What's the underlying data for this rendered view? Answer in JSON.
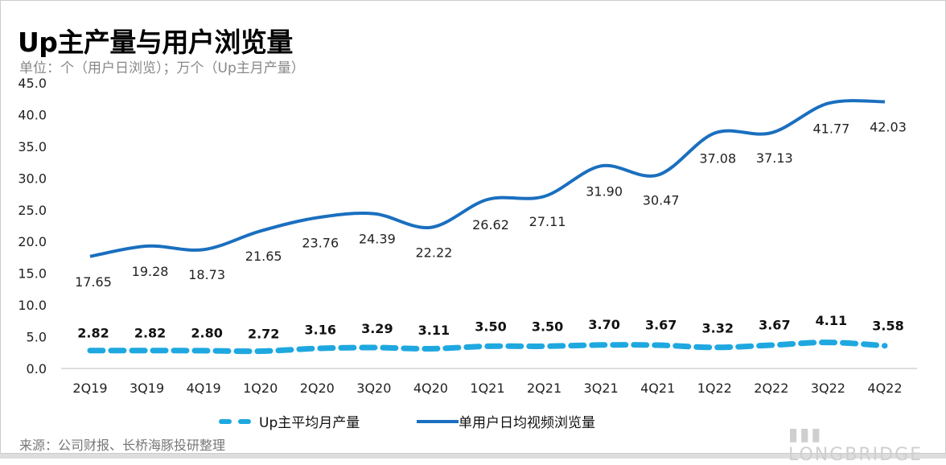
{
  "title": "Up主产量与用户浏览量",
  "unit": "单位：个（用户日浏览）；万个（Up主月产量）",
  "source": "来源：公司财报、长桥海豚投研整理",
  "watermark": "LONGBRIDGE",
  "colors": {
    "dashed": "#1fa8e0",
    "solid": "#1a6fbf"
  },
  "chart_data": {
    "type": "line",
    "title": "Up主产量与用户浏览量",
    "categories": [
      "2Q19",
      "3Q19",
      "4Q19",
      "1Q20",
      "2Q20",
      "3Q20",
      "4Q20",
      "1Q21",
      "2Q21",
      "3Q21",
      "4Q21",
      "1Q22",
      "2Q22",
      "3Q22",
      "4Q22"
    ],
    "y_ticks": [
      "0.0",
      "5.0",
      "10.0",
      "15.0",
      "20.0",
      "25.0",
      "30.0",
      "35.0",
      "40.0",
      "45.0"
    ],
    "ylim": [
      0,
      45
    ],
    "grid": false,
    "legend_position": "bottom",
    "series": [
      {
        "name": "Up主平均月产量",
        "style": "dashed",
        "values": [
          2.82,
          2.82,
          2.8,
          2.72,
          3.16,
          3.29,
          3.11,
          3.5,
          3.5,
          3.7,
          3.67,
          3.32,
          3.67,
          4.11,
          3.58
        ],
        "labels": [
          "2.82",
          "2.82",
          "2.80",
          "2.72",
          "3.16",
          "3.29",
          "3.11",
          "3.50",
          "3.50",
          "3.70",
          "3.67",
          "3.32",
          "3.67",
          "4.11",
          "3.58"
        ]
      },
      {
        "name": "单用户日均视频浏览量",
        "style": "solid",
        "values": [
          17.65,
          19.28,
          18.73,
          21.65,
          23.76,
          24.39,
          22.22,
          26.62,
          27.11,
          31.9,
          30.47,
          37.08,
          37.13,
          41.77,
          42.03
        ],
        "labels": [
          "17.65",
          "19.28",
          "18.73",
          "21.65",
          "23.76",
          "24.39",
          "22.22",
          "26.62",
          "27.11",
          "31.90",
          "30.47",
          "37.08",
          "37.13",
          "41.77",
          "42.03"
        ]
      }
    ]
  }
}
